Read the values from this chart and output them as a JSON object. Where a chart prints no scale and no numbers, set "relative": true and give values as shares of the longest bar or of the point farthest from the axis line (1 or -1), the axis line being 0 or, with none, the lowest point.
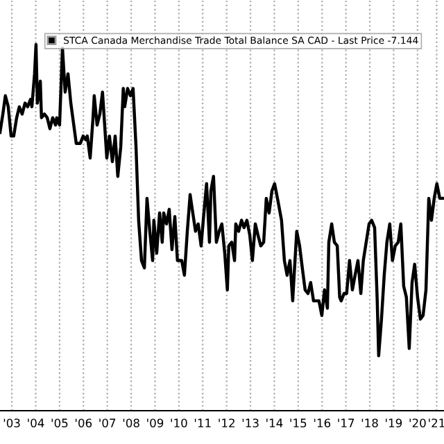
{
  "chart_data": {
    "type": "line",
    "relative": true,
    "legend": "top right",
    "grid": "x",
    "line_style": "solid",
    "marker": "none",
    "xlim": [
      "2003-01-01",
      "2021-08-10"
    ],
    "xticks": [
      {
        "value": "2003-07-01",
        "label": "'03"
      },
      {
        "value": "2004-07-01",
        "label": "'04"
      },
      {
        "value": "2005-07-01",
        "label": "'05"
      },
      {
        "value": "2006-07-01",
        "label": "'06"
      },
      {
        "value": "2007-07-01",
        "label": "'07"
      },
      {
        "value": "2008-07-01",
        "label": "'08"
      },
      {
        "value": "2009-07-01",
        "label": "'09"
      },
      {
        "value": "2010-07-01",
        "label": "'10"
      },
      {
        "value": "2011-07-01",
        "label": "'11"
      },
      {
        "value": "2012-07-01",
        "label": "'12"
      },
      {
        "value": "2013-07-01",
        "label": "'13"
      },
      {
        "value": "2014-07-01",
        "label": "'14"
      },
      {
        "value": "2015-07-01",
        "label": "'15"
      },
      {
        "value": "2016-07-01",
        "label": "'16"
      },
      {
        "value": "2017-07-01",
        "label": "'17"
      },
      {
        "value": "2018-07-01",
        "label": "'18"
      },
      {
        "value": "2019-07-01",
        "label": "'19"
      },
      {
        "value": "2020-07-01",
        "label": "'20"
      },
      {
        "value": "2021-04-20",
        "label": "'21"
      }
    ],
    "series": [
      {
        "name": "STCA Canada Merchandise Trade Total Balance SA CAD - Last Price -7.144",
        "color": "#000000",
        "x": [
          "2003-01-01",
          "2003-02-14",
          "2003-03-24",
          "2003-05-07",
          "2003-06-20",
          "2003-07-30",
          "2003-09-13",
          "2003-10-23",
          "2003-12-06",
          "2004-01-19",
          "2004-02-28",
          "2004-04-12",
          "2004-05-03",
          "2004-06-13",
          "2004-07-05",
          "2004-07-26",
          "2004-09-09",
          "2004-09-27",
          "2004-11-11",
          "2004-12-24",
          "2005-02-03",
          "2005-03-17",
          "2005-04-30",
          "2005-05-18",
          "2005-07-01",
          "2005-08-14",
          "2005-09-24",
          "2005-11-07",
          "2005-12-20",
          "2006-03-13",
          "2006-05-14",
          "2006-06-27",
          "2006-08-07",
          "2006-08-29",
          "2006-10-12",
          "2006-11-25",
          "2006-12-13",
          "2007-01-26",
          "2007-03-09",
          "2007-04-19",
          "2007-05-11",
          "2007-06-24",
          "2007-08-03",
          "2007-09-17",
          "2007-10-30",
          "2007-12-09",
          "2008-01-23",
          "2008-03-02",
          "2008-03-24",
          "2008-05-07",
          "2008-06-20",
          "2008-07-30",
          "2008-09-13",
          "2008-10-23",
          "2008-12-06",
          "2009-01-19",
          "2009-02-28",
          "2009-04-12",
          "2009-05-25",
          "2009-06-13",
          "2009-07-26",
          "2009-09-09",
          "2009-10-19",
          "2009-11-11",
          "2009-12-24",
          "2010-02-03",
          "2010-03-17",
          "2010-04-30",
          "2010-06-09",
          "2010-08-14",
          "2010-09-24",
          "2010-11-07",
          "2010-12-20",
          "2011-01-30",
          "2011-03-13",
          "2011-04-23",
          "2011-06-06",
          "2011-07-19",
          "2011-08-29",
          "2011-10-12",
          "2011-11-03",
          "2011-12-13",
          "2012-01-26",
          "2012-03-09",
          "2012-04-19",
          "2012-06-02",
          "2012-07-12",
          "2012-08-03",
          "2012-09-17",
          "2012-10-30",
          "2012-11-18",
          "2013-01-01",
          "2013-02-14",
          "2013-03-24",
          "2013-05-07",
          "2013-06-20",
          "2013-07-30",
          "2013-09-13",
          "2013-10-23",
          "2013-12-06",
          "2014-01-19",
          "2014-02-28",
          "2014-04-12",
          "2014-05-25",
          "2014-07-05",
          "2014-08-18",
          "2014-10-19",
          "2014-12-02",
          "2015-01-12",
          "2015-02-25",
          "2015-04-08",
          "2015-04-30",
          "2015-06-09",
          "2015-07-23",
          "2015-09-02",
          "2015-10-15",
          "2015-11-29",
          "2016-01-08",
          "2016-02-21",
          "2016-04-05",
          "2016-05-14",
          "2016-06-27",
          "2016-08-07",
          "2016-09-20",
          "2016-10-12",
          "2016-11-25",
          "2017-01-05",
          "2017-02-18",
          "2017-03-27",
          "2017-04-19",
          "2017-06-02",
          "2017-07-12",
          "2017-08-25",
          "2017-10-08",
          "2017-11-18",
          "2018-01-01",
          "2018-02-14",
          "2018-03-24",
          "2018-05-07",
          "2018-06-20",
          "2018-07-30",
          "2018-09-13",
          "2018-10-23",
          "2018-11-14",
          "2018-12-27",
          "2019-02-07",
          "2019-03-20",
          "2019-05-03",
          "2019-06-13",
          "2019-07-26",
          "2019-09-09",
          "2019-10-19",
          "2019-12-02",
          "2020-01-12",
          "2020-02-25",
          "2020-04-08",
          "2020-05-18",
          "2020-07-01",
          "2020-08-14",
          "2020-09-24",
          "2020-11-07",
          "2020-12-20",
          "2021-01-30",
          "2021-03-13",
          "2021-04-23",
          "2021-06-06",
          "2021-07-19"
        ],
        "values": [
          0.76,
          0.81,
          0.86,
          0.83,
          0.75,
          0.75,
          0.8,
          0.83,
          0.81,
          0.84,
          0.83,
          0.85,
          0.83,
          0.92,
          1.0,
          0.84,
          0.9,
          0.8,
          0.81,
          0.8,
          0.77,
          0.8,
          0.78,
          0.8,
          0.78,
          0.99,
          0.87,
          0.92,
          0.84,
          0.73,
          0.73,
          0.75,
          0.74,
          0.75,
          0.69,
          0.8,
          0.86,
          0.78,
          0.81,
          0.87,
          0.81,
          0.69,
          0.75,
          0.68,
          0.75,
          0.64,
          0.72,
          0.88,
          0.83,
          0.88,
          0.86,
          0.88,
          0.72,
          0.52,
          0.41,
          0.39,
          0.58,
          0.49,
          0.41,
          0.52,
          0.43,
          0.54,
          0.46,
          0.54,
          0.51,
          0.55,
          0.44,
          0.53,
          0.41,
          0.41,
          0.37,
          0.49,
          0.59,
          0.54,
          0.49,
          0.51,
          0.45,
          0.54,
          0.62,
          0.46,
          0.6,
          0.64,
          0.46,
          0.49,
          0.51,
          0.43,
          0.33,
          0.45,
          0.46,
          0.41,
          0.51,
          0.49,
          0.52,
          0.5,
          0.52,
          0.48,
          0.41,
          0.51,
          0.48,
          0.45,
          0.46,
          0.58,
          0.54,
          0.6,
          0.62,
          0.58,
          0.52,
          0.41,
          0.37,
          0.41,
          0.3,
          0.37,
          0.49,
          0.45,
          0.39,
          0.33,
          0.32,
          0.35,
          0.3,
          0.3,
          0.3,
          0.26,
          0.33,
          0.28,
          0.46,
          0.51,
          0.46,
          0.45,
          0.31,
          0.3,
          0.32,
          0.32,
          0.41,
          0.33,
          0.37,
          0.41,
          0.32,
          0.41,
          0.46,
          0.51,
          0.52,
          0.5,
          0.3,
          0.15,
          0.25,
          0.37,
          0.46,
          0.51,
          0.41,
          0.45,
          0.46,
          0.51,
          0.34,
          0.31,
          0.17,
          0.35,
          0.4,
          0.31,
          0.25,
          0.26,
          0.33,
          0.58,
          0.52,
          0.58,
          0.62,
          0.58,
          0.58
        ]
      }
    ]
  }
}
